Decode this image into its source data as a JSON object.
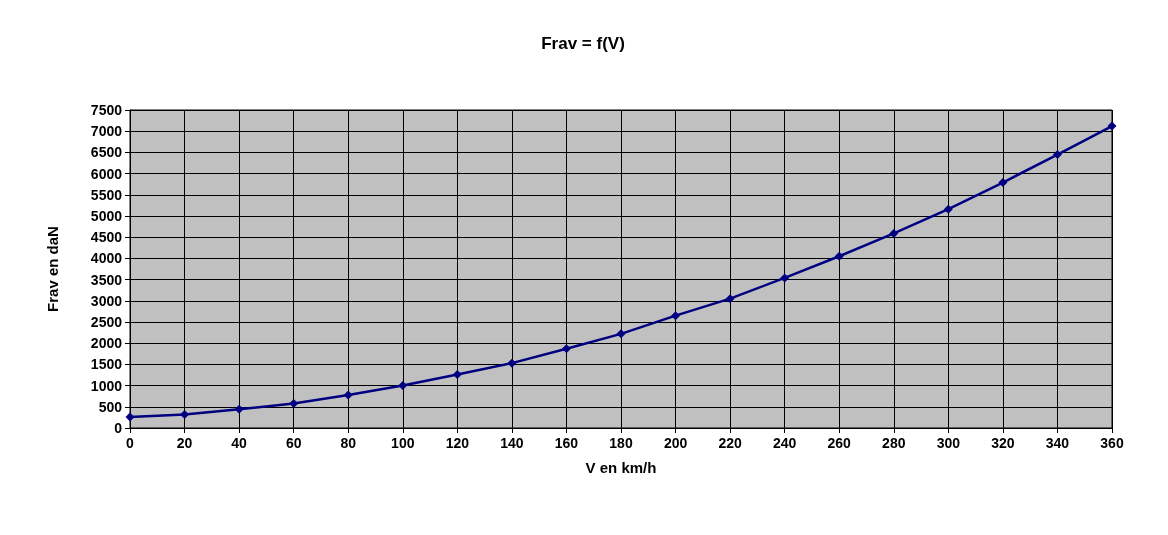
{
  "chart_data": {
    "type": "line",
    "title": "Frav = f(V)",
    "xlabel": "V en km/h",
    "ylabel": "Frav en daN",
    "x": [
      0,
      20,
      40,
      60,
      80,
      100,
      120,
      140,
      160,
      180,
      200,
      220,
      240,
      260,
      280,
      300,
      320,
      340,
      360
    ],
    "series": [
      {
        "color": "#000080",
        "values": [
          260,
          320,
          440,
          580,
          780,
          1000,
          1260,
          1530,
          1870,
          2220,
          2650,
          3050,
          3540,
          4050,
          4590,
          5160,
          5790,
          6450,
          7120
        ]
      }
    ],
    "xlim": [
      0,
      360
    ],
    "xticks": [
      0,
      20,
      40,
      60,
      80,
      100,
      120,
      140,
      160,
      180,
      200,
      220,
      240,
      260,
      280,
      300,
      320,
      340,
      360
    ],
    "ylim": [
      0,
      7500
    ],
    "yticks": [
      0,
      500,
      1000,
      1500,
      2000,
      2500,
      3000,
      3500,
      4000,
      4500,
      5000,
      5500,
      6000,
      6500,
      7000,
      7500
    ],
    "grid": true,
    "marker": "diamond",
    "line_style": "solid"
  }
}
